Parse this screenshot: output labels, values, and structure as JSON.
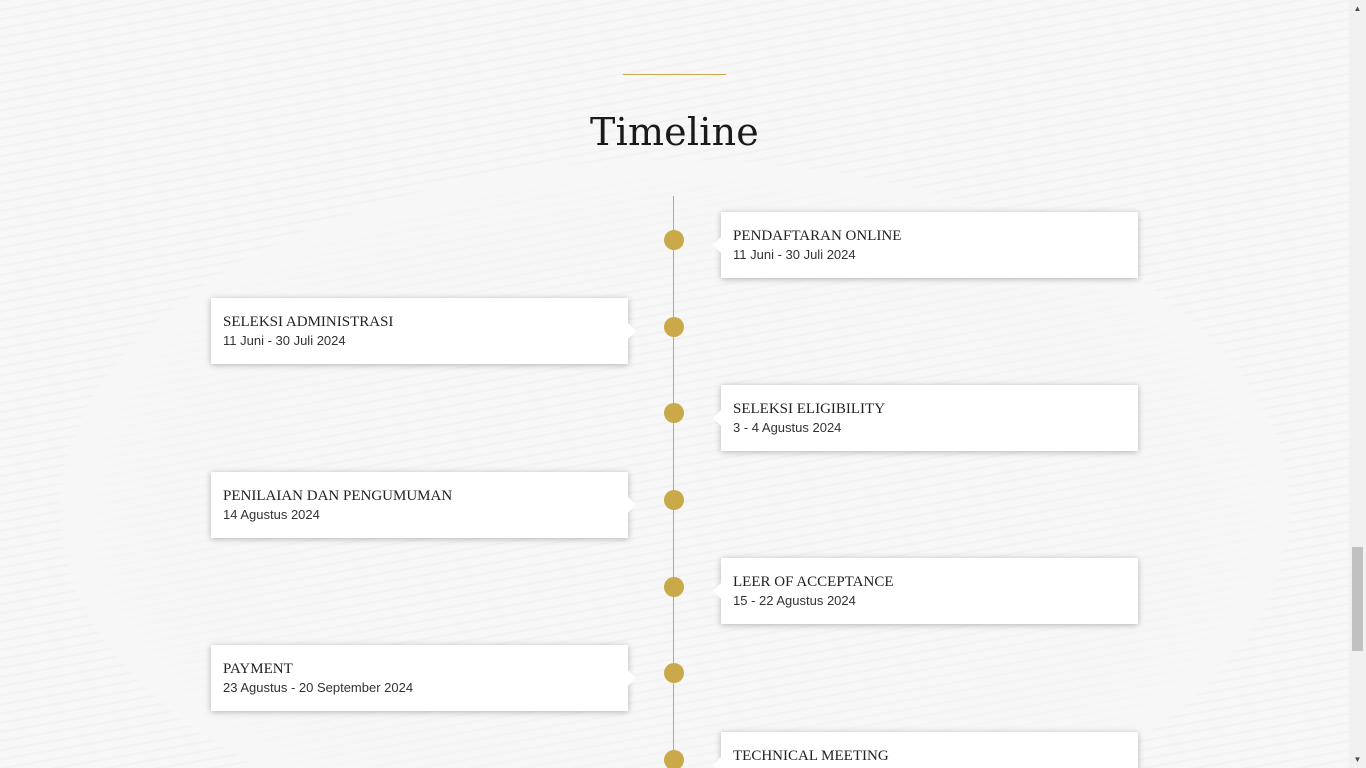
{
  "section": {
    "heading": "Timeline"
  },
  "timeline": {
    "items": [
      {
        "title": "PENDAFTARAN ONLINE",
        "date": "11 Juni - 30 Juli 2024"
      },
      {
        "title": "SELEKSI ADMINISTRASI",
        "date": "11 Juni - 30 Juli 2024"
      },
      {
        "title": "SELEKSI ELIGIBILITY",
        "date": "3 - 4 Agustus 2024"
      },
      {
        "title": "PENILAIAN DAN PENGUMUMAN",
        "date": "14 Agustus 2024"
      },
      {
        "title": "LEER OF ACCEPTANCE",
        "date": "15 - 22 Agustus 2024"
      },
      {
        "title": "PAYMENT",
        "date": "23 Agustus - 20 September 2024"
      },
      {
        "title": "TECHNICAL MEETING",
        "date": ""
      }
    ]
  },
  "colors": {
    "accent": "#c9a94a",
    "background": "#f7f7f7",
    "card": "#ffffff"
  },
  "scrollbar": {
    "up_icon": "triangle-up-icon",
    "down_icon": "triangle-down-icon"
  }
}
